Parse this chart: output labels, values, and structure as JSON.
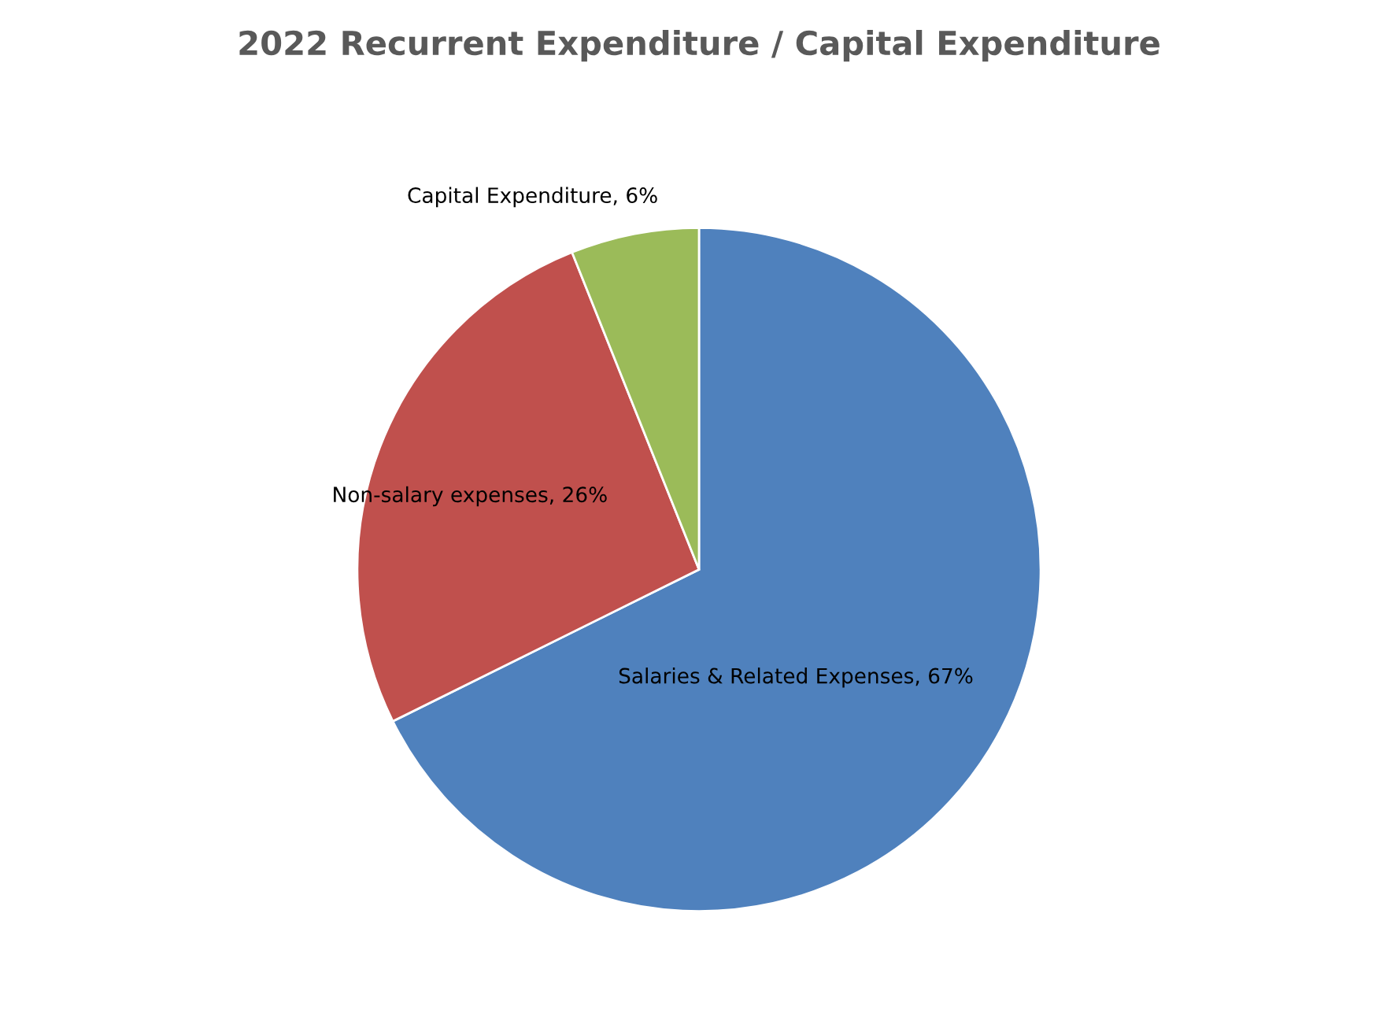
{
  "chart_data": {
    "type": "pie",
    "title": "2022 Recurrent Expenditure / Capital Expenditure",
    "categories": [
      "Salaries & Related Expenses",
      "Non-salary expenses",
      "Capital Expenditure"
    ],
    "values": [
      67,
      26,
      6
    ],
    "value_labels": [
      ", 67%",
      ", 26%",
      ", 6%"
    ],
    "colors": [
      "#4f81bd",
      "#c0504d",
      "#9bbb59"
    ],
    "legend": false
  }
}
